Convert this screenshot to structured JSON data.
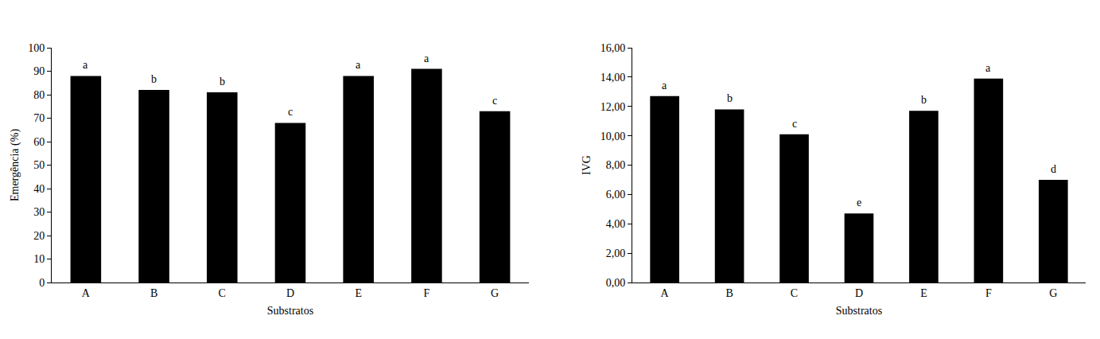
{
  "chart_data": [
    {
      "type": "bar",
      "x_label": "Substratos",
      "y_label": "Emergência (%)",
      "categories": [
        "A",
        "B",
        "C",
        "D",
        "E",
        "F",
        "G"
      ],
      "values": [
        88,
        82,
        81,
        68,
        88,
        91,
        73
      ],
      "annotations": [
        "a",
        "b",
        "b",
        "c",
        "a",
        "a",
        "c"
      ],
      "color": "#000000",
      "ylim": [
        0,
        100
      ],
      "yticks": [
        0,
        10,
        20,
        30,
        40,
        50,
        60,
        70,
        80,
        90,
        100
      ],
      "grid": false
    },
    {
      "type": "bar",
      "x_label": "Substratos",
      "y_label": "IVG",
      "categories": [
        "A",
        "B",
        "C",
        "D",
        "E",
        "F",
        "G"
      ],
      "values": [
        12.7,
        11.8,
        10.1,
        4.7,
        11.7,
        13.9,
        7.0
      ],
      "annotations": [
        "a",
        "b",
        "c",
        "e",
        "b",
        "a",
        "d"
      ],
      "color": "#000000",
      "ylim": [
        0,
        16
      ],
      "yticks": [
        {
          "value": 0,
          "label": "0,00"
        },
        {
          "value": 2,
          "label": "2,00"
        },
        {
          "value": 4,
          "label": "4,00"
        },
        {
          "value": 6,
          "label": "6,00"
        },
        {
          "value": 8,
          "label": "8,00"
        },
        {
          "value": 10,
          "label": "10,00"
        },
        {
          "value": 12,
          "label": "12,00"
        },
        {
          "value": 14,
          "label": "14,00"
        },
        {
          "value": 16,
          "label": "16,00"
        }
      ],
      "grid": false
    }
  ]
}
